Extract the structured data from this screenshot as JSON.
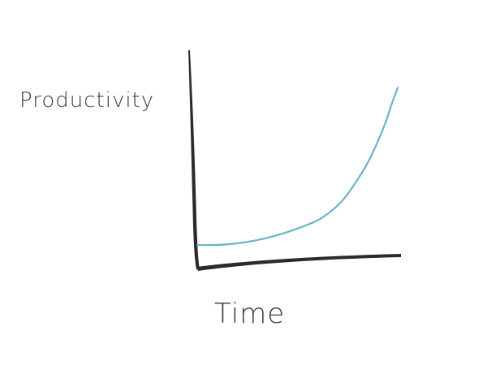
{
  "chart_data": {
    "type": "line",
    "title": "",
    "xlabel": "Time",
    "ylabel": "Productivity",
    "xlim": [
      0,
      10
    ],
    "ylim": [
      0,
      10
    ],
    "grid": false,
    "legend": "none",
    "series": [
      {
        "x": [
          0,
          1,
          2,
          3,
          4,
          5,
          6,
          6.5,
          7,
          7.5,
          8,
          8.5,
          9,
          9.4,
          9.7,
          10
        ],
        "values": [
          0.0,
          0.0,
          0.1,
          0.3,
          0.6,
          1.0,
          1.5,
          1.9,
          2.4,
          3.1,
          4.0,
          5.0,
          6.3,
          7.5,
          8.6,
          9.6
        ]
      }
    ]
  },
  "colors": {
    "axis": "#2b2b2b",
    "curve": "#6ab4c4",
    "label": "#3a3a3a",
    "background": "#ffffff"
  }
}
